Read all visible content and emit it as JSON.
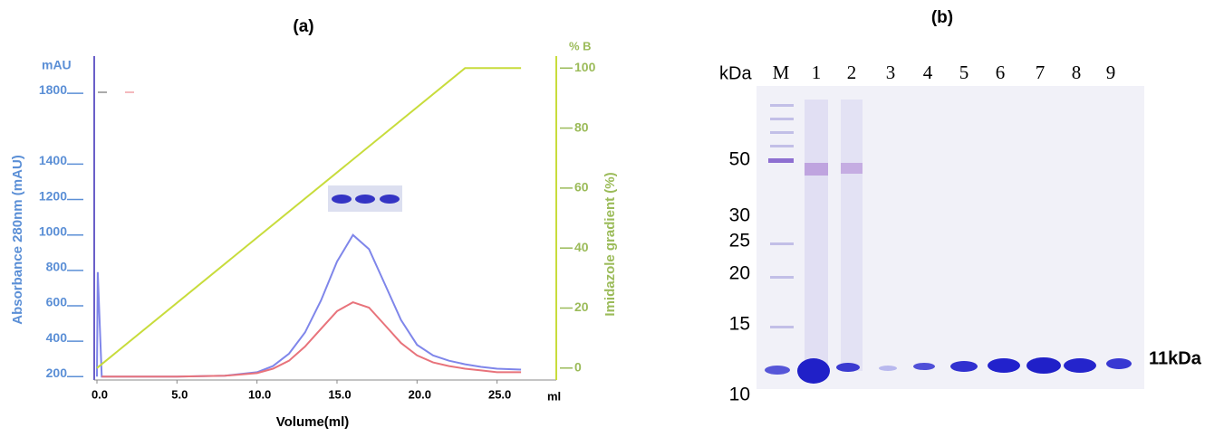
{
  "chart_data": {
    "type": "line",
    "title": "(a)",
    "xlabel": "Volume(ml)",
    "xunit": "ml",
    "ylabel": "Absorbance 280nm (mAU)",
    "yunit": "mAU",
    "y2label": "Imidazole gradient (%)",
    "y2unit": "% B",
    "xlim": [
      0,
      28.7
    ],
    "xticks": [
      {
        "value": 0,
        "label": "0.0"
      },
      {
        "value": 5,
        "label": "5.0"
      },
      {
        "value": 10,
        "label": "10.0"
      },
      {
        "value": 15,
        "label": "15.0"
      },
      {
        "value": 20,
        "label": "20.0"
      },
      {
        "value": 25,
        "label": "25.0"
      }
    ],
    "ylim": [
      130,
      2010
    ],
    "yticks": [
      200,
      400,
      600,
      800,
      1000,
      1200,
      1400,
      1800
    ],
    "y2lim": [
      -7,
      104
    ],
    "y2ticks": [
      0,
      20,
      40,
      60,
      80,
      100
    ],
    "series": [
      {
        "color": "#7f86ea",
        "x": [
          0,
          0.05,
          0.3,
          5,
          8,
          10,
          11,
          12,
          13,
          14,
          15,
          16,
          17,
          18,
          19,
          20,
          21,
          22,
          23,
          24,
          25,
          26.5
        ],
        "values": [
          200,
          790,
          200,
          200,
          205,
          225,
          260,
          330,
          450,
          630,
          850,
          1000,
          920,
          720,
          520,
          380,
          320,
          290,
          270,
          255,
          245,
          240
        ]
      },
      {
        "color": "#e8737b",
        "x": [
          0.3,
          5,
          8,
          10,
          11,
          12,
          13,
          14,
          15,
          16,
          17,
          18,
          19,
          20,
          21,
          22,
          23,
          24,
          25,
          26.5
        ],
        "values": [
          200,
          200,
          205,
          220,
          245,
          290,
          370,
          470,
          570,
          620,
          590,
          490,
          390,
          320,
          280,
          260,
          245,
          235,
          225,
          225
        ]
      },
      {
        "color": "#c8dc3c",
        "axis": "y2",
        "x": [
          0,
          23,
          26.5
        ],
        "values": [
          0,
          100,
          100
        ]
      }
    ]
  },
  "gel": {
    "title": "(b)",
    "unit": "kDa",
    "lanes": [
      "M",
      "1",
      "2",
      "3",
      "4",
      "5",
      "6",
      "7",
      "8",
      "9"
    ],
    "markers": [
      "50",
      "30",
      "25",
      "20",
      "15",
      "10"
    ],
    "band_label": "11kDa"
  }
}
